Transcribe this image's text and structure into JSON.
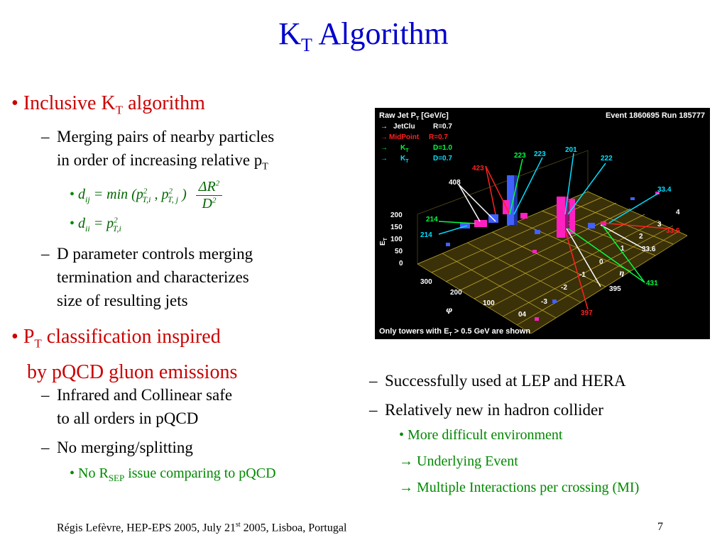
{
  "title": {
    "main": "K",
    "sub": "T",
    "rest": " Algorithm"
  },
  "left": {
    "b1": {
      "bullet": "•",
      "pre": "Inclusive K",
      "sub": "T",
      "post": " algorithm"
    },
    "b1_1": {
      "dash": "–",
      "line1": "Merging pairs of nearby particles",
      "line2_pre": "in order of increasing relative p",
      "line2_sub": "T"
    },
    "f1": {
      "bullet": "•",
      "lhs": "d",
      "lhs_sub": "ij",
      "eq": " = min (p",
      "sup1": "2",
      "sub1": "T,i",
      "mid": " , p",
      "sup2": "2",
      "sub2": "T, j",
      "close": " )",
      "num": "ΔR",
      "num_sup": "2",
      "den": "D",
      "den_sup": "2"
    },
    "f2": {
      "bullet": "•",
      "lhs": "d",
      "lhs_sub": "ii",
      "eq": " = p",
      "sup": "2",
      "sub": "T,i"
    },
    "b1_2": {
      "dash": "–",
      "line1": "D parameter controls merging",
      "line2": "termination and characterizes",
      "line3": "size of resulting jets"
    },
    "b2": {
      "bullet": "•",
      "pre": "P",
      "sub": "T",
      "post": " classification inspired",
      "line2": "by pQCD gluon emissions"
    },
    "b2_1": {
      "dash": "–",
      "line1": "Infrared and Collinear safe",
      "line2": "to all orders in pQCD"
    },
    "b2_2": {
      "dash": "–",
      "line1": "No merging/splitting"
    },
    "b2_2_1": {
      "bullet": "•",
      "pre": "No R",
      "sub": "SEP",
      "post": " issue comparing to pQCD"
    }
  },
  "right": {
    "r1": {
      "dash": "–",
      "text": "Successfully used at LEP and HERA"
    },
    "r2": {
      "dash": "–",
      "text": "Relatively new in hadron collider"
    },
    "r2_1": {
      "bullet": "•",
      "text": "More difficult environment"
    },
    "r2_2": {
      "arrow": "→",
      "text": " Underlying Event"
    },
    "r2_3": {
      "arrow": "→",
      "text": " Multiple Interactions per crossing (MI)"
    }
  },
  "event": {
    "header_pre": "Raw Jet P",
    "header_sub": "T",
    "header_post": " [GeV/c]",
    "event_label": "Event 1860695   Run 185777",
    "legend": [
      {
        "arrow": "→",
        "name": "JetClu",
        "param": "R=0.7",
        "color": "#ffffff"
      },
      {
        "arrow": "→",
        "name": "MidPoint",
        "param": "R=0.7",
        "color": "#ff2020"
      },
      {
        "arrow": "→",
        "name": "K",
        "name_sub": "T",
        "param": "D=1.0",
        "color": "#00ff40"
      },
      {
        "arrow": "→",
        "name": "K",
        "name_sub": "T",
        "param": "D=0.7",
        "color": "#00e0ff"
      }
    ],
    "labels": {
      "l423": "423",
      "l223a": "223",
      "l223b": "223",
      "l201": "201",
      "l222": "222",
      "l408": "408",
      "l33_4": "33.4",
      "l214a": "214",
      "l214b": "214",
      "l33_6a": "33.6",
      "l33_6b": "33.6",
      "l395": "395",
      "l431": "431",
      "l397": "397"
    },
    "zaxis_ticks": [
      "200",
      "150",
      "100",
      "50",
      "0"
    ],
    "zaxis_label": "E",
    "zaxis_label_sub": "T",
    "phi_ticks": [
      "300",
      "200",
      "100",
      "04"
    ],
    "phi_label": "φ",
    "eta_ticks": [
      "4",
      "3",
      "2",
      "1",
      "0",
      "-1",
      "-2",
      "-3"
    ],
    "eta_label": "η",
    "footer_pre": "Only towers with E",
    "footer_sub": "T",
    "footer_post": " > 0.5 GeV are shown"
  },
  "footer": {
    "pre": "Régis Lefèvre, HEP-EPS 2005, July 21",
    "sup": "st",
    "post": " 2005, Lisboa, Portugal",
    "page": "7"
  }
}
